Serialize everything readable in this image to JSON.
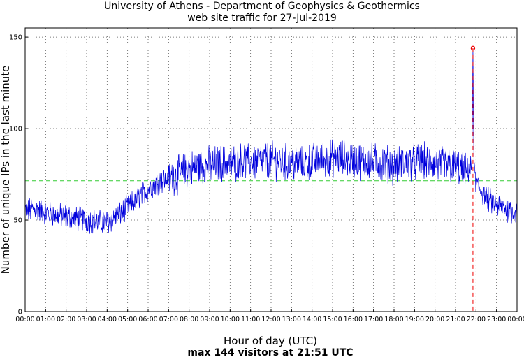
{
  "chart_data": {
    "type": "line",
    "title": "University of Athens - Department of Geophysics & Geothermics",
    "subtitle": "web site traffic for 27-Jul-2019",
    "xlabel": "Hour of day (UTC)",
    "ylabel": "Number of unique IPs in the last minute",
    "footer": "max 144 visitors at 21:51 UTC",
    "xlim": [
      0,
      24
    ],
    "ylim": [
      0,
      155
    ],
    "x_ticks": [
      "00:00",
      "01:00",
      "02:00",
      "03:00",
      "04:00",
      "05:00",
      "06:00",
      "07:00",
      "08:00",
      "09:00",
      "10:00",
      "11:00",
      "12:00",
      "13:00",
      "14:00",
      "15:00",
      "16:00",
      "17:00",
      "18:00",
      "19:00",
      "20:00",
      "21:00",
      "22:00",
      "23:00",
      "00:00"
    ],
    "y_ticks": [
      0,
      50,
      100,
      150
    ],
    "grid": true,
    "mean_line": {
      "value": 71.5,
      "color": "#33cc33"
    },
    "max_marker": {
      "x": 21.85,
      "y": 144,
      "color": "#ee0000"
    },
    "series": [
      {
        "color": "#0000dd",
        "hourly_trend": {
          "x": [
            0,
            0.5,
            1,
            1.5,
            2,
            2.5,
            3,
            3.5,
            4,
            4.5,
            5,
            5.5,
            6,
            6.5,
            7,
            7.5,
            8,
            8.5,
            9,
            9.5,
            10,
            10.5,
            11,
            11.5,
            12,
            12.5,
            13,
            13.5,
            14,
            14.5,
            15,
            15.5,
            16,
            16.5,
            17,
            17.5,
            18,
            18.5,
            19,
            19.5,
            20,
            20.5,
            21,
            21.5,
            21.85,
            22,
            22.5,
            23,
            23.5,
            24
          ],
          "y": [
            55,
            56,
            54,
            53,
            52,
            51,
            50,
            49,
            49,
            52,
            57,
            62,
            67,
            71,
            73,
            75,
            78,
            79,
            80,
            81,
            81,
            82,
            82,
            82,
            83,
            82,
            81,
            81,
            82,
            83,
            84,
            84,
            83,
            82,
            82,
            81,
            80,
            81,
            82,
            82,
            81,
            80,
            79,
            76,
            80,
            70,
            62,
            58,
            56,
            54
          ]
        },
        "peak": {
          "x": 21.85,
          "y": 144
        }
      }
    ]
  }
}
